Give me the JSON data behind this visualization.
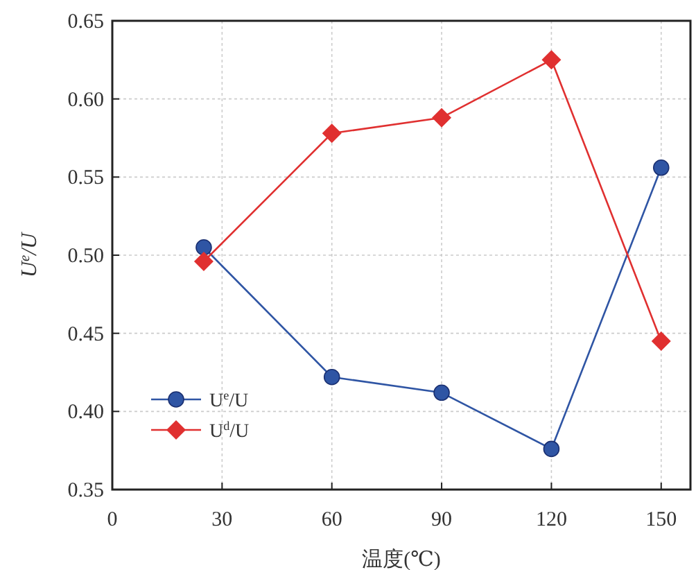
{
  "chart_data": {
    "type": "line",
    "xlabel": "温度(℃)",
    "ylabel": "U$^{e}$/U",
    "x": [
      25,
      60,
      90,
      120,
      150
    ],
    "series": [
      {
        "name": "U$^{e}$/U",
        "color": "#2f55a4",
        "marker": "circle",
        "values": [
          0.505,
          0.422,
          0.412,
          0.376,
          0.556
        ]
      },
      {
        "name": "U$^{d}$/U",
        "color": "#e03030",
        "marker": "diamond",
        "values": [
          0.496,
          0.578,
          0.588,
          0.625,
          0.445
        ]
      }
    ],
    "xlim": [
      0,
      158
    ],
    "xticks": [
      0,
      30,
      60,
      90,
      120,
      150
    ],
    "ylim": [
      0.35,
      0.65
    ],
    "yticks": [
      {
        "value": 0.35,
        "label": "0.35"
      },
      {
        "value": 0.4,
        "label": "0.40"
      },
      {
        "value": 0.45,
        "label": "0.45"
      },
      {
        "value": 0.5,
        "label": "0.50"
      },
      {
        "value": 0.55,
        "label": "0.55"
      },
      {
        "value": 0.6,
        "label": "0.60"
      },
      {
        "value": 0.65,
        "label": "0.65"
      }
    ],
    "grid": true,
    "legend": "bottom left",
    "line_style": "solid"
  }
}
